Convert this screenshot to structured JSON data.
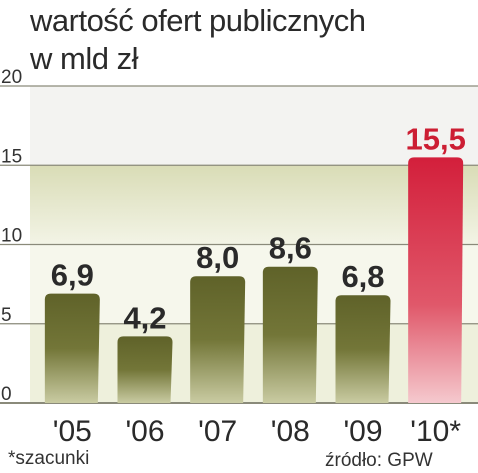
{
  "title_line1": "wartość ofert publicznych",
  "title_line2": "w mld zł",
  "footnote": "*szacunki",
  "source": "źródło: GPW",
  "colors": {
    "bar": "#6b6e33",
    "bar_highlight": "#d0223e",
    "label": "#2a2a2a",
    "label_highlight": "#cc1e33",
    "band_light": "#f1f1e0",
    "band_dark": "#e2e4c8"
  },
  "chart_data": {
    "type": "bar",
    "title": "wartość ofert publicznych w mld zł",
    "categories": [
      "'05",
      "'06",
      "'07",
      "'08",
      "'09",
      "'10*"
    ],
    "values": [
      6.9,
      4.2,
      8.0,
      8.6,
      6.8,
      15.5
    ],
    "value_labels": [
      "6,9",
      "4,2",
      "8,0",
      "8,6",
      "6,8",
      "15,5"
    ],
    "yticks": [
      "0",
      "5",
      "10",
      "15",
      "20"
    ],
    "ylim": [
      0,
      20
    ],
    "highlight_index": 5,
    "grid": true
  }
}
